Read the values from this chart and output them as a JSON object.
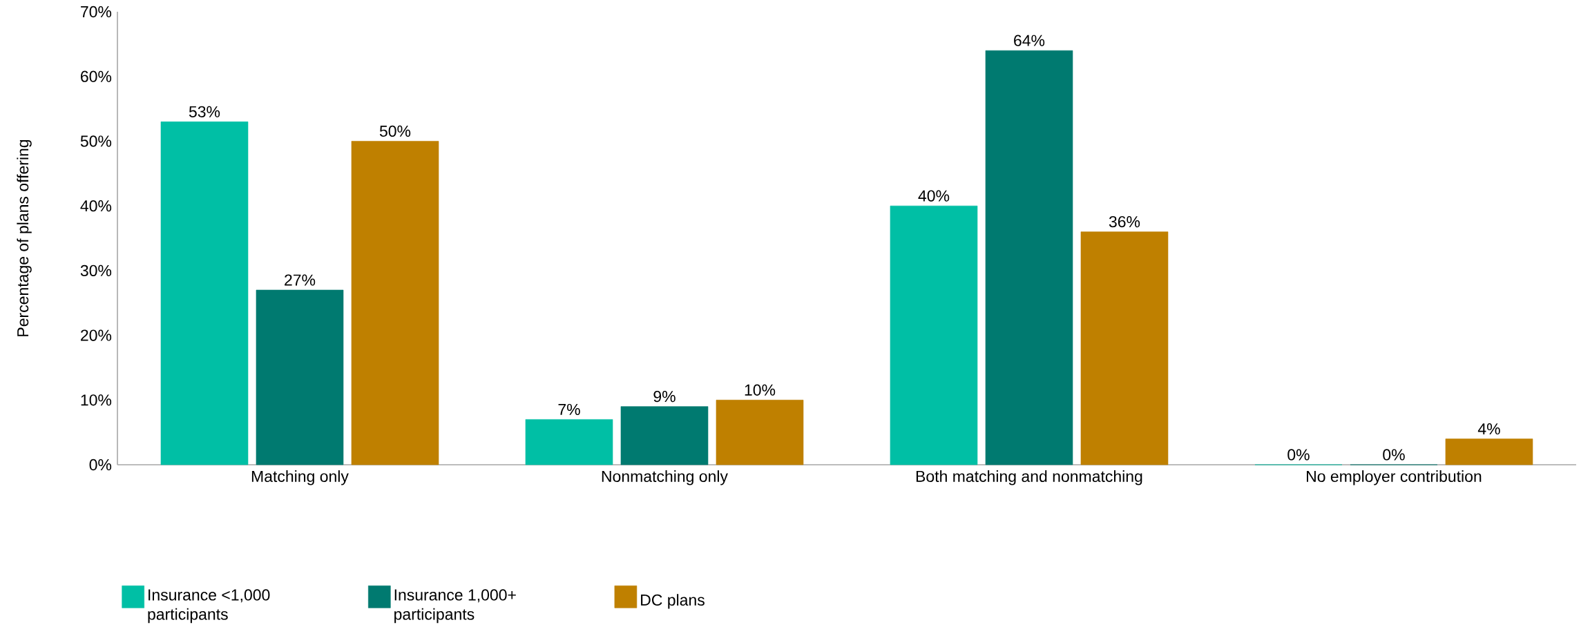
{
  "chart_data": {
    "type": "bar",
    "ylabel": "Percentage of plans offering",
    "categories": [
      "Matching only",
      "Nonmatching only",
      "Both matching and nonmatching",
      "No employer contribution"
    ],
    "series": [
      {
        "name": "Insurance <1,000 participants",
        "color": "#00bfa5",
        "values": [
          53,
          7,
          40,
          0
        ],
        "value_labels": [
          "53%",
          "7%",
          "40%",
          "0%"
        ]
      },
      {
        "name": "Insurance 1,000+ participants",
        "color": "#007a70",
        "values": [
          27,
          9,
          64,
          0
        ],
        "value_labels": [
          "27%",
          "9%",
          "64%",
          "0%"
        ]
      },
      {
        "name": "DC plans",
        "color": "#bf8000",
        "values": [
          50,
          10,
          36,
          4
        ],
        "value_labels": [
          "50%",
          "10%",
          "36%",
          "4%"
        ]
      }
    ],
    "ylim": [
      0,
      70
    ],
    "yticks": [
      {
        "value": 0,
        "label": "0%"
      },
      {
        "value": 10,
        "label": "10%"
      },
      {
        "value": 20,
        "label": "20%"
      },
      {
        "value": 30,
        "label": "30%"
      },
      {
        "value": 40,
        "label": "40%"
      },
      {
        "value": 50,
        "label": "50%"
      },
      {
        "value": 60,
        "label": "60%"
      },
      {
        "value": 70,
        "label": "70%"
      }
    ],
    "grid": false,
    "legend": "bottom left"
  }
}
